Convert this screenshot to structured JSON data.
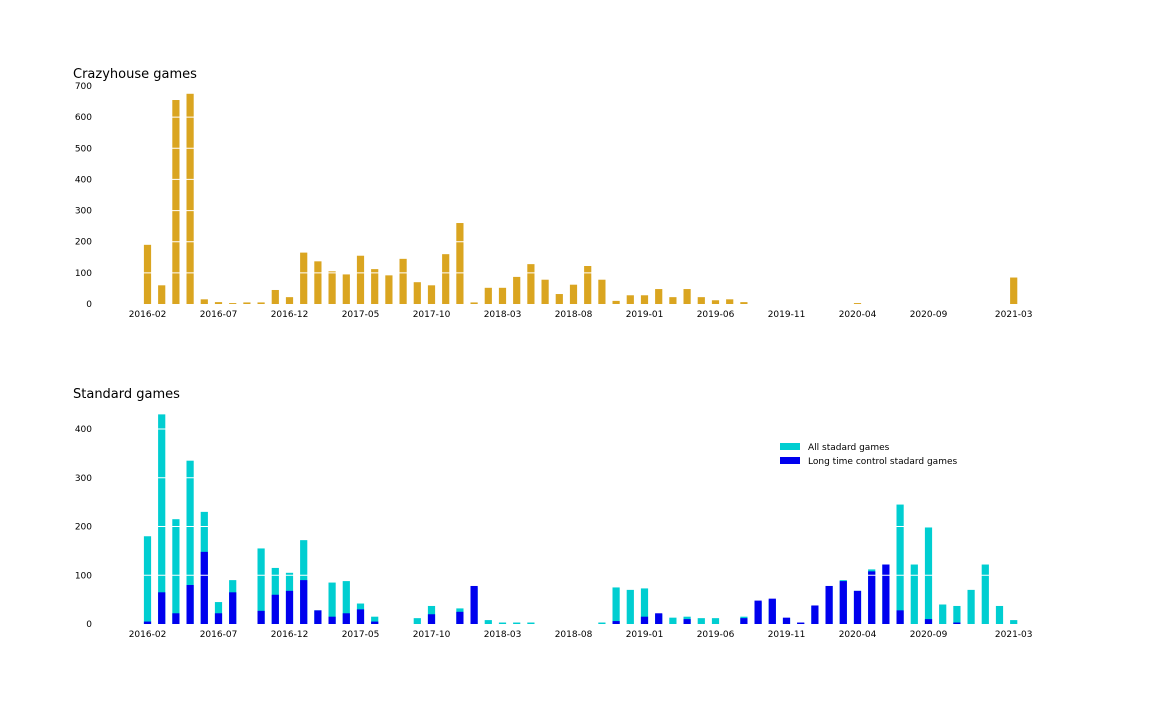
{
  "chart_data": [
    {
      "type": "bar",
      "title": "Crazyhouse games",
      "xlabel": "",
      "ylabel": "",
      "ylim": [
        0,
        700
      ],
      "yticks": [
        0,
        100,
        200,
        300,
        400,
        500,
        600,
        700
      ],
      "grid": "y",
      "color": "#DAA520",
      "months": [
        "2016-02",
        "2016-03",
        "2016-04",
        "2016-05",
        "2016-06",
        "2016-07",
        "2016-08",
        "2016-09",
        "2016-10",
        "2016-11",
        "2016-12",
        "2017-01",
        "2017-02",
        "2017-03",
        "2017-04",
        "2017-05",
        "2017-06",
        "2017-07",
        "2017-08",
        "2017-09",
        "2017-10",
        "2017-11",
        "2017-12",
        "2018-01",
        "2018-02",
        "2018-03",
        "2018-04",
        "2018-05",
        "2018-06",
        "2018-07",
        "2018-08",
        "2018-09",
        "2018-10",
        "2018-11",
        "2018-12",
        "2019-01",
        "2019-02",
        "2019-03",
        "2019-04",
        "2019-05",
        "2019-06",
        "2019-07",
        "2019-08",
        "2019-09",
        "2019-10",
        "2019-11",
        "2019-12",
        "2020-01",
        "2020-02",
        "2020-03",
        "2020-04",
        "2020-05",
        "2020-06",
        "2020-07",
        "2020-08",
        "2020-09",
        "2020-10",
        "2020-11",
        "2020-12",
        "2021-01",
        "2021-02",
        "2021-03"
      ],
      "tick_labels": [
        "2016-02",
        "2016-07",
        "2016-12",
        "2017-05",
        "2017-10",
        "2018-03",
        "2018-08",
        "2019-01",
        "2019-06",
        "2019-11",
        "2020-04",
        "2020-09",
        "2021-03"
      ],
      "values": [
        190,
        60,
        655,
        675,
        15,
        6,
        3,
        5,
        5,
        45,
        22,
        165,
        137,
        105,
        95,
        155,
        112,
        92,
        145,
        70,
        60,
        160,
        260,
        5,
        52,
        52,
        87,
        128,
        78,
        32,
        62,
        122,
        78,
        10,
        28,
        28,
        48,
        22,
        48,
        22,
        12,
        15,
        6,
        0,
        0,
        0,
        0,
        0,
        0,
        0,
        3,
        0,
        0,
        0,
        0,
        0,
        0,
        0,
        0,
        0,
        0,
        85
      ]
    },
    {
      "type": "bar",
      "title": "Standard games",
      "xlabel": "",
      "ylabel": "",
      "ylim": [
        0,
        440
      ],
      "yticks": [
        0,
        100,
        200,
        300,
        400
      ],
      "grid": "y",
      "legend_position": "top-right",
      "months": [
        "2016-02",
        "2016-03",
        "2016-04",
        "2016-05",
        "2016-06",
        "2016-07",
        "2016-08",
        "2016-09",
        "2016-10",
        "2016-11",
        "2016-12",
        "2017-01",
        "2017-02",
        "2017-03",
        "2017-04",
        "2017-05",
        "2017-06",
        "2017-07",
        "2017-08",
        "2017-09",
        "2017-10",
        "2017-11",
        "2017-12",
        "2018-01",
        "2018-02",
        "2018-03",
        "2018-04",
        "2018-05",
        "2018-06",
        "2018-07",
        "2018-08",
        "2018-09",
        "2018-10",
        "2018-11",
        "2018-12",
        "2019-01",
        "2019-02",
        "2019-03",
        "2019-04",
        "2019-05",
        "2019-06",
        "2019-07",
        "2019-08",
        "2019-09",
        "2019-10",
        "2019-11",
        "2019-12",
        "2020-01",
        "2020-02",
        "2020-03",
        "2020-04",
        "2020-05",
        "2020-06",
        "2020-07",
        "2020-08",
        "2020-09",
        "2020-10",
        "2020-11",
        "2020-12",
        "2021-01",
        "2021-02",
        "2021-03"
      ],
      "tick_labels": [
        "2016-02",
        "2016-07",
        "2016-12",
        "2017-05",
        "2017-10",
        "2018-03",
        "2018-08",
        "2019-01",
        "2019-06",
        "2019-11",
        "2020-04",
        "2020-09",
        "2021-03"
      ],
      "series": [
        {
          "name": "All stadard games",
          "color": "#00CED1",
          "values": [
            180,
            430,
            215,
            335,
            230,
            45,
            90,
            0,
            155,
            115,
            105,
            172,
            28,
            85,
            88,
            42,
            15,
            0,
            0,
            12,
            37,
            0,
            32,
            75,
            8,
            3,
            3,
            3,
            0,
            0,
            0,
            0,
            3,
            75,
            70,
            73,
            20,
            13,
            15,
            12,
            12,
            0,
            15,
            45,
            50,
            12,
            2,
            37,
            78,
            90,
            68,
            112,
            122,
            245,
            122,
            198,
            40,
            37,
            70,
            122,
            37,
            8
          ]
        },
        {
          "name": "Long time control stadard games",
          "color": "#0000EE",
          "values": [
            5,
            65,
            22,
            80,
            148,
            22,
            65,
            0,
            27,
            60,
            68,
            90,
            28,
            15,
            22,
            30,
            5,
            0,
            0,
            0,
            20,
            0,
            25,
            78,
            0,
            0,
            0,
            0,
            0,
            0,
            0,
            0,
            0,
            6,
            0,
            15,
            22,
            0,
            10,
            0,
            0,
            0,
            12,
            48,
            52,
            13,
            3,
            38,
            78,
            88,
            68,
            108,
            122,
            28,
            0,
            10,
            0,
            3,
            0,
            0,
            0,
            0
          ]
        }
      ]
    }
  ]
}
